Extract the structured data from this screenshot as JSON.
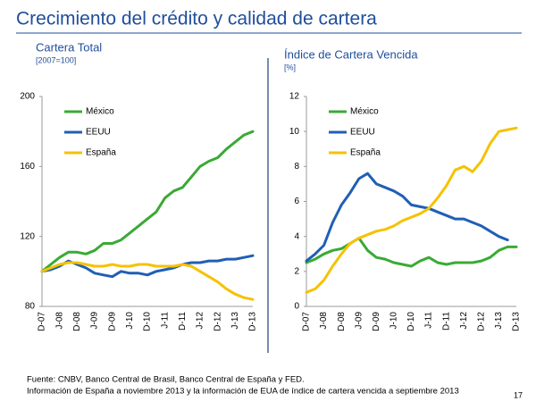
{
  "title": "Crecimiento del crédito y calidad de cartera",
  "footnotes": [
    "Fuente: CNBV, Banco Central de Brasil, Banco Central de España y FED.",
    "Información de España a noviembre 2013 y la información de EUA de índice de cartera vencida a septiembre 2013"
  ],
  "page_number": "17",
  "chart_data": [
    {
      "type": "line",
      "title": "Cartera Total",
      "subtitle": "[2007=100]",
      "categories": [
        "D-07",
        null,
        "J-08",
        null,
        "D-08",
        null,
        "J-09",
        null,
        "D-09",
        null,
        "J-10",
        null,
        "D-10",
        null,
        "J-11",
        null,
        "D-11",
        null,
        "J-12",
        null,
        "D-12",
        null,
        "J-13",
        null,
        "D-13"
      ],
      "series": [
        {
          "name": "México",
          "color": "#3aaa35",
          "values": [
            100,
            104,
            108,
            111,
            111,
            110,
            112,
            116,
            116,
            118,
            122,
            126,
            130,
            134,
            142,
            146,
            148,
            154,
            160,
            163,
            165,
            170,
            174,
            178,
            180
          ]
        },
        {
          "name": "EEUU",
          "color": "#1f5fb5",
          "values": [
            100,
            101,
            103,
            106,
            104,
            102,
            99,
            98,
            97,
            100,
            99,
            99,
            98,
            100,
            101,
            102,
            104,
            105,
            105,
            106,
            106,
            107,
            107,
            108,
            109
          ]
        },
        {
          "name": "España",
          "color": "#f5c200",
          "values": [
            100,
            102,
            104,
            105,
            105,
            104,
            103,
            103,
            104,
            103,
            103,
            104,
            104,
            103,
            103,
            103,
            104,
            103,
            100,
            97,
            94,
            90,
            87,
            85,
            84
          ]
        }
      ],
      "ylim": [
        80,
        200
      ],
      "yticks": [
        80,
        120,
        160,
        200
      ],
      "legend": "upper left"
    },
    {
      "type": "line",
      "title": "Índice de Cartera Vencida",
      "subtitle": "[%]",
      "categories": [
        "D-07",
        null,
        "J-08",
        null,
        "D-08",
        null,
        "J-09",
        null,
        "D-09",
        null,
        "J-10",
        null,
        "D-10",
        null,
        "J-11",
        null,
        "D-11",
        null,
        "J-12",
        null,
        "D-12",
        null,
        "J-13",
        null,
        "D-13"
      ],
      "series": [
        {
          "name": "México",
          "color": "#3aaa35",
          "values": [
            2.5,
            2.7,
            3.0,
            3.2,
            3.3,
            3.6,
            3.9,
            3.2,
            2.8,
            2.7,
            2.5,
            2.4,
            2.3,
            2.6,
            2.8,
            2.5,
            2.4,
            2.5,
            2.5,
            2.5,
            2.6,
            2.8,
            3.2,
            3.4,
            3.4
          ]
        },
        {
          "name": "EEUU",
          "color": "#1f5fb5",
          "values": [
            2.6,
            3.0,
            3.5,
            4.8,
            5.8,
            6.5,
            7.3,
            7.6,
            7.0,
            6.8,
            6.6,
            6.3,
            5.8,
            5.7,
            5.6,
            5.4,
            5.2,
            5.0,
            5.0,
            4.8,
            4.6,
            4.3,
            4.0,
            3.8,
            null
          ]
        },
        {
          "name": "España",
          "color": "#f5c200",
          "values": [
            0.8,
            1.0,
            1.5,
            2.3,
            3.0,
            3.6,
            3.9,
            4.1,
            4.3,
            4.4,
            4.6,
            4.9,
            5.1,
            5.3,
            5.6,
            6.2,
            6.9,
            7.8,
            8.0,
            7.7,
            8.3,
            9.3,
            10.0,
            10.1,
            10.2
          ]
        }
      ],
      "ylim": [
        0,
        12
      ],
      "yticks": [
        0,
        2,
        4,
        6,
        8,
        10,
        12
      ],
      "legend": "upper left"
    }
  ]
}
